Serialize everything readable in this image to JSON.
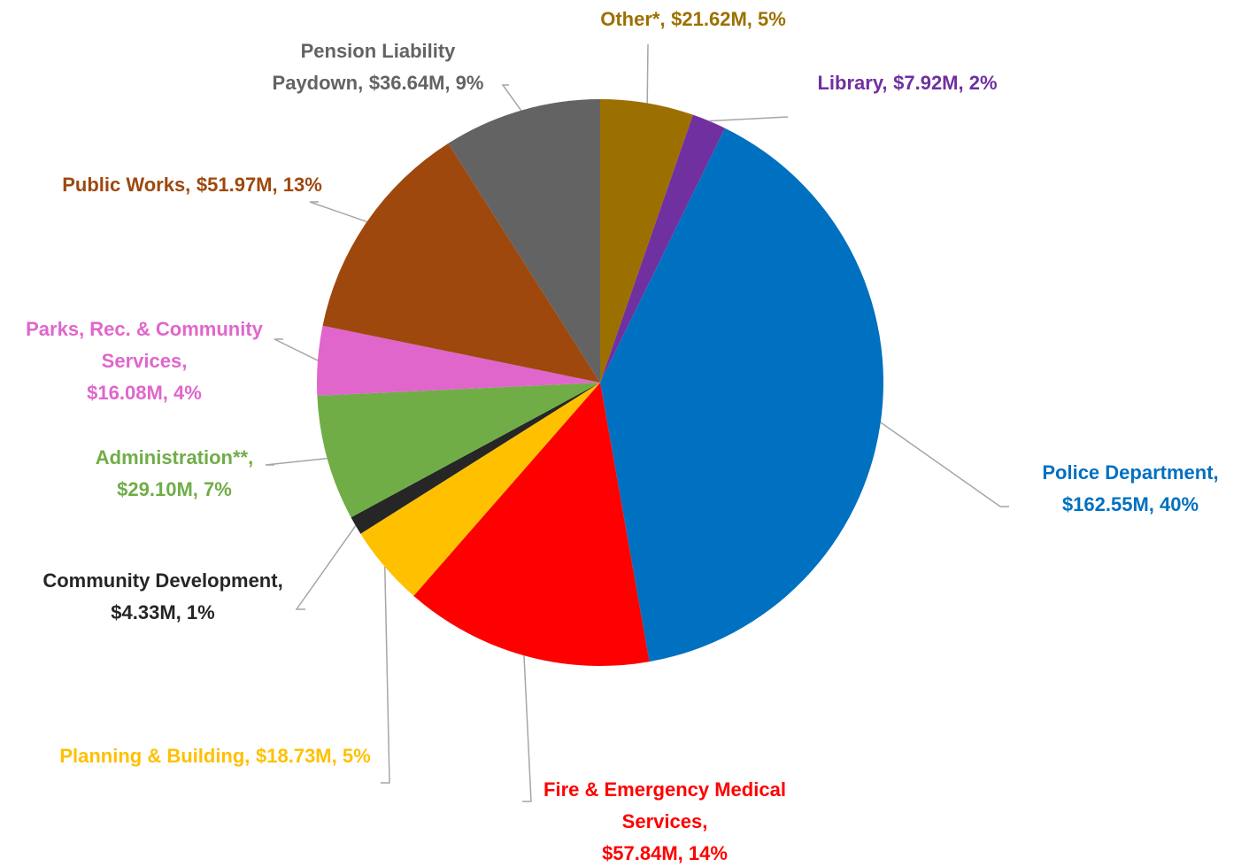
{
  "chart_data": {
    "type": "pie",
    "categories": [
      "Other*,",
      "Library,",
      "Police Department,",
      "Fire & Emergency Medical Services,",
      "Planning & Building,",
      "Community Development,",
      "Administration**,",
      "Parks, Rec. & Community Services,",
      "Public Works,",
      "Pension Liability Paydown,"
    ],
    "values": [
      21.62,
      7.92,
      162.55,
      57.84,
      18.73,
      4.33,
      29.1,
      16.08,
      51.97,
      36.64
    ],
    "value_labels": [
      "$21.62M, 5%",
      "$7.92M, 2%",
      "$162.55M, 40%",
      "$57.84M, 14%",
      "$18.73M, 5%",
      "$4.33M, 1%",
      "$29.10M, 7%",
      "$16.08M, 4%",
      "$51.97M, 13%",
      "$36.64M, 9%"
    ],
    "colors": [
      "#9c7000",
      "#7030a0",
      "#0070c0",
      "#ff0000",
      "#ffc000",
      "#262626",
      "#70ad47",
      "#e066cc",
      "#9e480e",
      "#636363"
    ]
  }
}
